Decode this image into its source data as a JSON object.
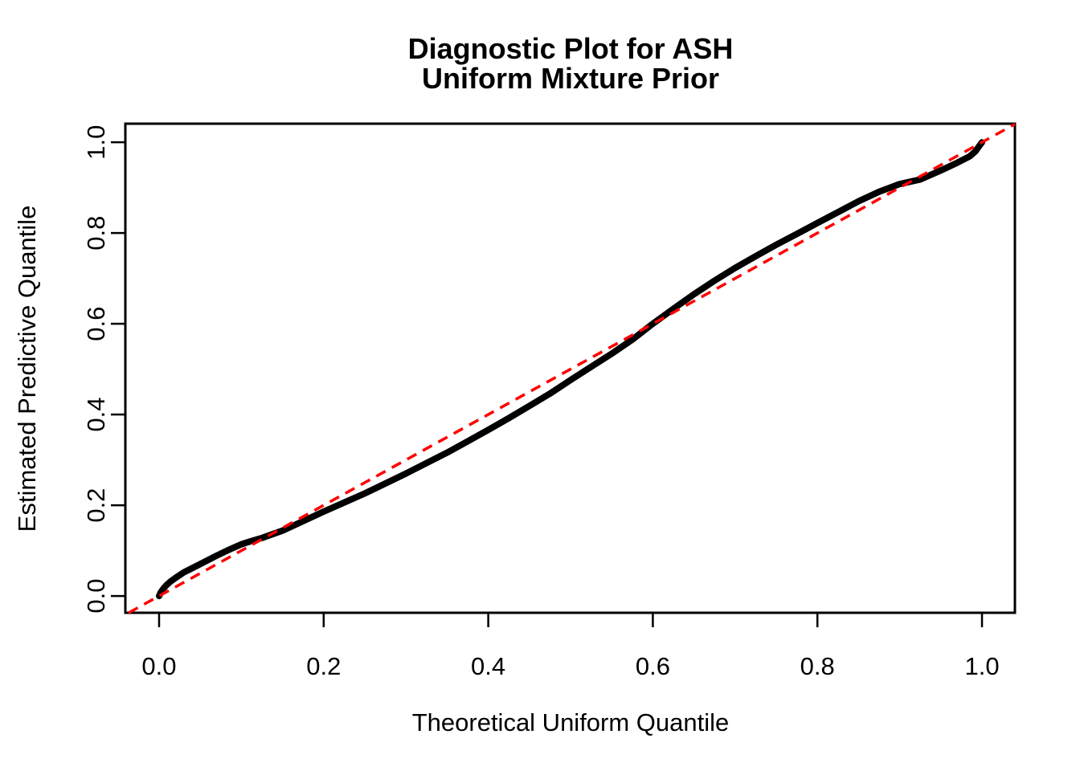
{
  "title": {
    "line1": "Diagnostic Plot for ASH",
    "line2": "Uniform Mixture Prior"
  },
  "axes": {
    "x": {
      "label": "Theoretical Uniform Quantile",
      "ticks": [
        0.0,
        0.2,
        0.4,
        0.6,
        0.8,
        1.0
      ],
      "tick_labels": [
        "0.0",
        "0.2",
        "0.4",
        "0.6",
        "0.8",
        "1.0"
      ],
      "range": [
        -0.041,
        1.04
      ]
    },
    "y": {
      "label": "Estimated Predictive Quantile",
      "ticks": [
        0.0,
        0.2,
        0.4,
        0.6,
        0.8,
        1.0
      ],
      "tick_labels": [
        "0.0",
        "0.2",
        "0.4",
        "0.6",
        "0.8",
        "1.0"
      ],
      "range": [
        -0.037,
        1.041
      ]
    }
  },
  "colors": {
    "background": "#FFFFFF",
    "axis": "#000000",
    "curve": "#000000",
    "reference_line": "#FF0000"
  },
  "chart_data": {
    "type": "scatter",
    "title": "Diagnostic Plot for ASH\nUniform Mixture Prior",
    "xlabel": "Theoretical Uniform Quantile",
    "ylabel": "Estimated Predictive Quantile",
    "xlim": [
      -0.041,
      1.04
    ],
    "ylim": [
      -0.037,
      1.041
    ],
    "grid": false,
    "legend": null,
    "series": [
      {
        "name": "qq-curve",
        "description": "Estimated predictive quantiles vs theoretical uniform quantiles (dense band of points)",
        "color": "#000000",
        "style": "thick-point-band",
        "x": [
          0.0,
          0.002,
          0.005,
          0.009,
          0.014,
          0.02,
          0.03,
          0.042,
          0.055,
          0.07,
          0.085,
          0.1,
          0.112,
          0.125,
          0.15,
          0.175,
          0.2,
          0.225,
          0.25,
          0.275,
          0.3,
          0.325,
          0.35,
          0.375,
          0.4,
          0.425,
          0.45,
          0.475,
          0.5,
          0.525,
          0.55,
          0.575,
          0.6,
          0.625,
          0.65,
          0.675,
          0.7,
          0.725,
          0.75,
          0.775,
          0.8,
          0.825,
          0.85,
          0.875,
          0.9,
          0.925,
          0.95,
          0.97,
          0.985,
          0.992,
          0.996,
          1.0
        ],
        "y": [
          0.0,
          0.008,
          0.016,
          0.024,
          0.032,
          0.04,
          0.052,
          0.063,
          0.075,
          0.089,
          0.102,
          0.114,
          0.121,
          0.128,
          0.144,
          0.165,
          0.186,
          0.206,
          0.226,
          0.248,
          0.27,
          0.293,
          0.316,
          0.341,
          0.366,
          0.392,
          0.419,
          0.446,
          0.476,
          0.505,
          0.534,
          0.565,
          0.6,
          0.633,
          0.665,
          0.695,
          0.723,
          0.749,
          0.774,
          0.798,
          0.822,
          0.846,
          0.87,
          0.891,
          0.908,
          0.918,
          0.938,
          0.955,
          0.969,
          0.98,
          0.99,
          1.0
        ]
      },
      {
        "name": "identity-reference",
        "description": "y = x reference line",
        "color": "#FF0000",
        "style": "dashed",
        "line": {
          "intercept": 0,
          "slope": 1
        }
      }
    ]
  }
}
